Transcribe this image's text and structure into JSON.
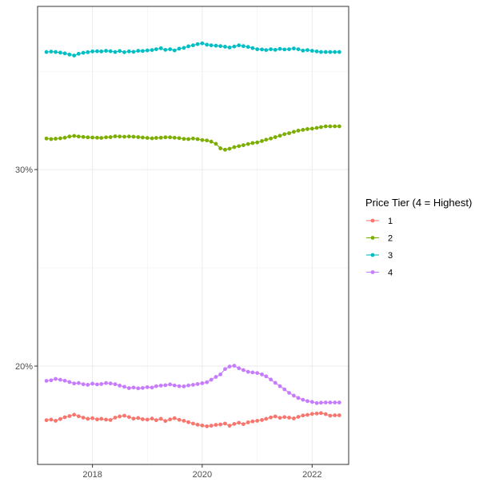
{
  "chart_data": {
    "type": "line",
    "markers": true,
    "grid": true,
    "legend_position": "right",
    "legend_title": "Price Tier (4 = Highest)",
    "xlim": [
      "2017-01-01",
      "2022-09-01"
    ],
    "ylim": [
      0.15,
      0.383
    ],
    "x_ticks": [
      "2018-01-01",
      "2020-01-01",
      "2022-01-01"
    ],
    "x_tick_labels": [
      "2018",
      "2020",
      "2022"
    ],
    "y_ticks": [
      0.2,
      0.3
    ],
    "y_tick_labels": [
      "20%",
      "30%"
    ],
    "x": [
      "2017-03-01",
      "2017-04-01",
      "2017-05-01",
      "2017-06-01",
      "2017-07-01",
      "2017-08-01",
      "2017-09-01",
      "2017-10-01",
      "2017-11-01",
      "2017-12-01",
      "2018-01-01",
      "2018-02-01",
      "2018-03-01",
      "2018-04-01",
      "2018-05-01",
      "2018-06-01",
      "2018-07-01",
      "2018-08-01",
      "2018-09-01",
      "2018-10-01",
      "2018-11-01",
      "2018-12-01",
      "2019-01-01",
      "2019-02-01",
      "2019-03-01",
      "2019-04-01",
      "2019-05-01",
      "2019-06-01",
      "2019-07-01",
      "2019-08-01",
      "2019-09-01",
      "2019-10-01",
      "2019-11-01",
      "2019-12-01",
      "2020-01-01",
      "2020-02-01",
      "2020-03-01",
      "2020-04-01",
      "2020-05-01",
      "2020-06-01",
      "2020-07-01",
      "2020-08-01",
      "2020-09-01",
      "2020-10-01",
      "2020-11-01",
      "2020-12-01",
      "2021-01-01",
      "2021-02-01",
      "2021-03-01",
      "2021-04-01",
      "2021-05-01",
      "2021-06-01",
      "2021-07-01",
      "2021-08-01",
      "2021-09-01",
      "2021-10-01",
      "2021-11-01",
      "2021-12-01",
      "2022-01-01",
      "2022-02-01",
      "2022-03-01",
      "2022-04-01",
      "2022-05-01",
      "2022-06-01",
      "2022-07-01"
    ],
    "series": [
      {
        "name": "1",
        "color": "#F8766D",
        "values": [
          0.1725,
          0.1728,
          0.1722,
          0.1731,
          0.174,
          0.1746,
          0.1753,
          0.1745,
          0.1738,
          0.1732,
          0.1735,
          0.1729,
          0.1732,
          0.1728,
          0.1726,
          0.1738,
          0.1744,
          0.1748,
          0.1741,
          0.1733,
          0.1736,
          0.173,
          0.1728,
          0.1733,
          0.1725,
          0.1732,
          0.1721,
          0.1729,
          0.1735,
          0.1727,
          0.1722,
          0.1715,
          0.1708,
          0.1702,
          0.1698,
          0.1694,
          0.1697,
          0.1701,
          0.1703,
          0.1708,
          0.1697,
          0.1706,
          0.1712,
          0.1705,
          0.1714,
          0.1719,
          0.1722,
          0.1726,
          0.1732,
          0.1739,
          0.1744,
          0.1737,
          0.1741,
          0.1738,
          0.1734,
          0.1742,
          0.1749,
          0.1752,
          0.1757,
          0.1759,
          0.1761,
          0.1756,
          0.1748,
          0.175,
          0.175
        ]
      },
      {
        "name": "2",
        "color": "#7CAE00",
        "values": [
          0.3158,
          0.3155,
          0.3157,
          0.3159,
          0.3162,
          0.3168,
          0.3171,
          0.3168,
          0.3166,
          0.3164,
          0.3163,
          0.3162,
          0.3161,
          0.3164,
          0.3165,
          0.3169,
          0.3168,
          0.3167,
          0.3168,
          0.3167,
          0.3165,
          0.3163,
          0.3161,
          0.3159,
          0.3161,
          0.3162,
          0.3164,
          0.3164,
          0.3162,
          0.316,
          0.3156,
          0.3155,
          0.3158,
          0.3155,
          0.315,
          0.3148,
          0.3142,
          0.3131,
          0.3108,
          0.3101,
          0.3106,
          0.3114,
          0.3119,
          0.3124,
          0.313,
          0.3135,
          0.3138,
          0.3145,
          0.3152,
          0.3158,
          0.3165,
          0.3172,
          0.318,
          0.3185,
          0.3192,
          0.3198,
          0.3202,
          0.3206,
          0.3208,
          0.3212,
          0.3216,
          0.322,
          0.322,
          0.322,
          0.322
        ]
      },
      {
        "name": "3",
        "color": "#00BFC4",
        "values": [
          0.3598,
          0.36,
          0.3598,
          0.3595,
          0.3591,
          0.3585,
          0.358,
          0.3589,
          0.3594,
          0.3597,
          0.3601,
          0.3602,
          0.3601,
          0.3604,
          0.3602,
          0.3598,
          0.3603,
          0.3597,
          0.3601,
          0.3599,
          0.3604,
          0.3603,
          0.3606,
          0.3608,
          0.3612,
          0.3617,
          0.3609,
          0.3612,
          0.3606,
          0.3615,
          0.3619,
          0.3627,
          0.3632,
          0.3638,
          0.3642,
          0.3635,
          0.3632,
          0.363,
          0.3628,
          0.3625,
          0.3621,
          0.3626,
          0.3632,
          0.3628,
          0.3624,
          0.3618,
          0.3612,
          0.3611,
          0.3608,
          0.3612,
          0.3609,
          0.3614,
          0.3611,
          0.3612,
          0.3616,
          0.3612,
          0.3605,
          0.3608,
          0.3604,
          0.3601,
          0.3598,
          0.3598,
          0.3598,
          0.3598,
          0.3598
        ]
      },
      {
        "name": "4",
        "color": "#C77CFF",
        "values": [
          0.1925,
          0.1928,
          0.1935,
          0.1931,
          0.1926,
          0.1919,
          0.1912,
          0.1914,
          0.1908,
          0.1905,
          0.1911,
          0.1907,
          0.1909,
          0.1914,
          0.1912,
          0.1908,
          0.1901,
          0.1895,
          0.1888,
          0.1891,
          0.1887,
          0.1889,
          0.1893,
          0.1891,
          0.1898,
          0.1901,
          0.1903,
          0.1907,
          0.1902,
          0.1898,
          0.1897,
          0.1902,
          0.1905,
          0.1909,
          0.1913,
          0.1918,
          0.1931,
          0.1945,
          0.1958,
          0.1985,
          0.1998,
          0.2002,
          0.1989,
          0.198,
          0.1971,
          0.1968,
          0.1965,
          0.1958,
          0.1948,
          0.1932,
          0.1915,
          0.1898,
          0.1882,
          0.1864,
          0.185,
          0.1838,
          0.1829,
          0.1822,
          0.1818,
          0.1812,
          0.1814,
          0.1815,
          0.1815,
          0.1815,
          0.1815
        ]
      }
    ]
  }
}
